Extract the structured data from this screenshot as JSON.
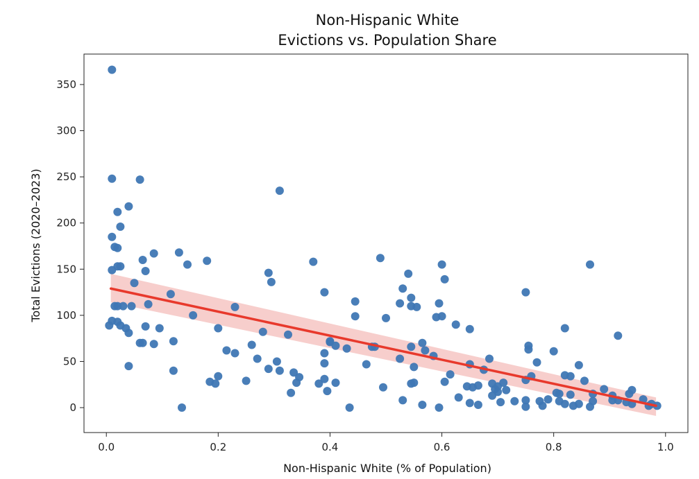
{
  "chart_data": {
    "type": "scatter",
    "title_lines": [
      "Non-Hispanic White",
      "Evictions vs. Population Share"
    ],
    "xlabel": "Non-Hispanic White (% of Population)",
    "ylabel": "Total Evictions (2020–2023)",
    "xlim": [
      -0.04,
      1.04
    ],
    "ylim": [
      -27,
      383
    ],
    "xticks": [
      0.0,
      0.2,
      0.4,
      0.6,
      0.8,
      1.0
    ],
    "xtick_labels": [
      "0.0",
      "0.2",
      "0.4",
      "0.6",
      "0.8",
      "1.0"
    ],
    "yticks": [
      0,
      50,
      100,
      150,
      200,
      250,
      300,
      350
    ],
    "ytick_labels": [
      "0",
      "50",
      "100",
      "150",
      "200",
      "250",
      "300",
      "350"
    ],
    "grid": false,
    "colors": {
      "points": "#3f77b4",
      "fit_line": "#e8392c",
      "ci_band": "#f6c6c3"
    },
    "regression": {
      "x": [
        0.008,
        0.983
      ],
      "y": [
        129,
        2
      ],
      "ci_upper": [
        145,
        11
      ],
      "ci_lower": [
        114,
        -9
      ]
    },
    "points": [
      [
        0.01,
        366
      ],
      [
        0.01,
        248
      ],
      [
        0.06,
        247
      ],
      [
        0.31,
        235
      ],
      [
        0.04,
        218
      ],
      [
        0.02,
        212
      ],
      [
        0.025,
        196
      ],
      [
        0.01,
        185
      ],
      [
        0.015,
        174
      ],
      [
        0.02,
        173
      ],
      [
        0.13,
        168
      ],
      [
        0.085,
        167
      ],
      [
        0.49,
        162
      ],
      [
        0.065,
        160
      ],
      [
        0.18,
        159
      ],
      [
        0.37,
        158
      ],
      [
        0.6,
        155
      ],
      [
        0.865,
        155
      ],
      [
        0.145,
        155
      ],
      [
        0.02,
        153
      ],
      [
        0.025,
        153
      ],
      [
        0.01,
        149
      ],
      [
        0.07,
        148
      ],
      [
        0.29,
        146
      ],
      [
        0.54,
        145
      ],
      [
        0.605,
        139
      ],
      [
        0.295,
        136
      ],
      [
        0.05,
        135
      ],
      [
        0.53,
        129
      ],
      [
        0.39,
        125
      ],
      [
        0.75,
        125
      ],
      [
        0.115,
        123
      ],
      [
        0.545,
        119
      ],
      [
        0.445,
        115
      ],
      [
        0.525,
        113
      ],
      [
        0.595,
        113
      ],
      [
        0.075,
        112
      ],
      [
        0.015,
        110
      ],
      [
        0.02,
        110
      ],
      [
        0.03,
        110
      ],
      [
        0.045,
        110
      ],
      [
        0.23,
        109
      ],
      [
        0.545,
        110
      ],
      [
        0.555,
        109
      ],
      [
        0.155,
        100
      ],
      [
        0.445,
        99
      ],
      [
        0.59,
        98
      ],
      [
        0.6,
        99
      ],
      [
        0.5,
        97
      ],
      [
        0.01,
        94
      ],
      [
        0.02,
        93
      ],
      [
        0.625,
        90
      ],
      [
        0.005,
        89
      ],
      [
        0.025,
        89
      ],
      [
        0.07,
        88
      ],
      [
        0.095,
        86
      ],
      [
        0.2,
        86
      ],
      [
        0.65,
        85
      ],
      [
        0.82,
        86
      ],
      [
        0.035,
        86
      ],
      [
        0.04,
        81
      ],
      [
        0.28,
        82
      ],
      [
        0.325,
        79
      ],
      [
        0.915,
        78
      ],
      [
        0.4,
        72
      ],
      [
        0.12,
        72
      ],
      [
        0.065,
        70
      ],
      [
        0.06,
        70
      ],
      [
        0.085,
        69
      ],
      [
        0.4,
        71
      ],
      [
        0.565,
        70
      ],
      [
        0.545,
        66
      ],
      [
        0.26,
        68
      ],
      [
        0.475,
        66
      ],
      [
        0.48,
        66
      ],
      [
        0.755,
        67
      ],
      [
        0.41,
        67
      ],
      [
        0.43,
        64
      ],
      [
        0.755,
        63
      ],
      [
        0.57,
        62
      ],
      [
        0.215,
        62
      ],
      [
        0.23,
        59
      ],
      [
        0.39,
        59
      ],
      [
        0.585,
        56
      ],
      [
        0.8,
        61
      ],
      [
        0.27,
        53
      ],
      [
        0.525,
        53
      ],
      [
        0.685,
        53
      ],
      [
        0.305,
        50
      ],
      [
        0.77,
        49
      ],
      [
        0.39,
        48
      ],
      [
        0.465,
        47
      ],
      [
        0.65,
        47
      ],
      [
        0.845,
        46
      ],
      [
        0.04,
        45
      ],
      [
        0.55,
        44
      ],
      [
        0.675,
        41
      ],
      [
        0.29,
        42
      ],
      [
        0.31,
        40
      ],
      [
        0.12,
        40
      ],
      [
        0.335,
        38
      ],
      [
        0.615,
        36
      ],
      [
        0.82,
        35
      ],
      [
        0.83,
        34
      ],
      [
        0.76,
        34
      ],
      [
        0.2,
        34
      ],
      [
        0.345,
        33
      ],
      [
        0.855,
        29
      ],
      [
        0.185,
        28
      ],
      [
        0.25,
        29
      ],
      [
        0.39,
        31
      ],
      [
        0.41,
        27
      ],
      [
        0.605,
        28
      ],
      [
        0.38,
        26
      ],
      [
        0.195,
        26
      ],
      [
        0.34,
        27
      ],
      [
        0.55,
        27
      ],
      [
        0.545,
        26
      ],
      [
        0.69,
        26
      ],
      [
        0.7,
        23
      ],
      [
        0.665,
        24
      ],
      [
        0.645,
        23
      ],
      [
        0.71,
        27
      ],
      [
        0.75,
        30
      ],
      [
        0.495,
        22
      ],
      [
        0.655,
        22
      ],
      [
        0.695,
        20
      ],
      [
        0.715,
        19
      ],
      [
        0.89,
        20
      ],
      [
        0.94,
        19
      ],
      [
        0.395,
        18
      ],
      [
        0.33,
        16
      ],
      [
        0.7,
        17
      ],
      [
        0.805,
        16
      ],
      [
        0.81,
        15
      ],
      [
        0.87,
        15
      ],
      [
        0.83,
        14
      ],
      [
        0.905,
        13
      ],
      [
        0.935,
        15
      ],
      [
        0.69,
        13
      ],
      [
        0.63,
        11
      ],
      [
        0.53,
        8
      ],
      [
        0.73,
        7
      ],
      [
        0.705,
        6
      ],
      [
        0.75,
        8
      ],
      [
        0.79,
        9
      ],
      [
        0.905,
        8
      ],
      [
        0.915,
        8
      ],
      [
        0.775,
        7
      ],
      [
        0.81,
        7
      ],
      [
        0.87,
        7
      ],
      [
        0.93,
        6
      ],
      [
        0.96,
        9
      ],
      [
        0.65,
        5
      ],
      [
        0.565,
        3
      ],
      [
        0.665,
        3
      ],
      [
        0.82,
        4
      ],
      [
        0.845,
        4
      ],
      [
        0.94,
        4
      ],
      [
        0.975,
        4
      ],
      [
        0.75,
        1
      ],
      [
        0.78,
        2
      ],
      [
        0.835,
        2
      ],
      [
        0.865,
        1
      ],
      [
        0.97,
        2
      ],
      [
        0.985,
        2
      ],
      [
        0.595,
        0
      ],
      [
        0.435,
        0
      ],
      [
        0.135,
        0
      ]
    ]
  }
}
